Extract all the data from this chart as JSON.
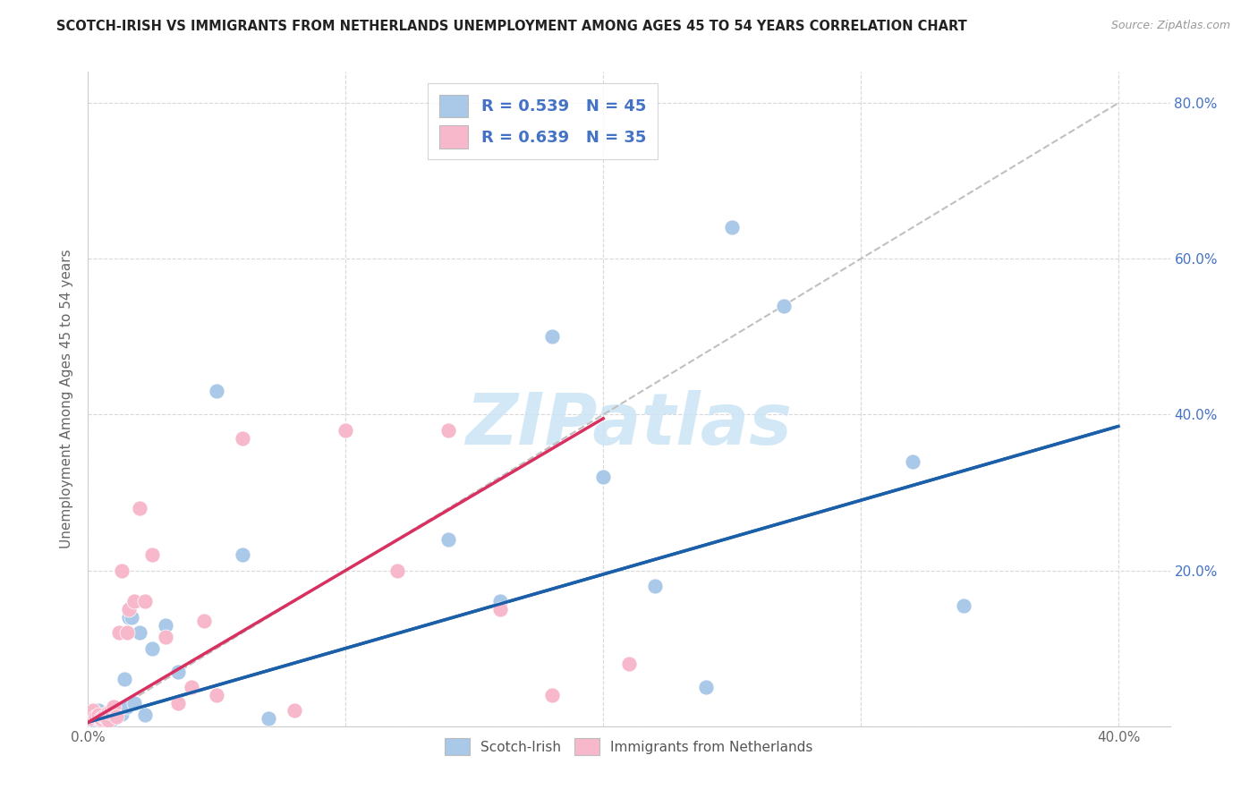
{
  "title": "SCOTCH-IRISH VS IMMIGRANTS FROM NETHERLANDS UNEMPLOYMENT AMONG AGES 45 TO 54 YEARS CORRELATION CHART",
  "source": "Source: ZipAtlas.com",
  "ylabel": "Unemployment Among Ages 45 to 54 years",
  "xlim": [
    0.0,
    0.42
  ],
  "ylim": [
    0.0,
    0.84
  ],
  "blue_R": 0.539,
  "blue_N": 45,
  "pink_R": 0.639,
  "pink_N": 35,
  "blue_color": "#aac8e8",
  "pink_color": "#f8b8cc",
  "blue_line_color": "#1a5fa8",
  "pink_line_color": "#d83060",
  "dashed_line_color": "#c0c0c0",
  "watermark_text": "ZIPatlas",
  "watermark_color": "#cce4f5",
  "grid_color": "#d8d8d8",
  "blue_scatter_x": [
    0.001,
    0.001,
    0.002,
    0.002,
    0.003,
    0.003,
    0.004,
    0.004,
    0.005,
    0.005,
    0.006,
    0.006,
    0.007,
    0.007,
    0.008,
    0.008,
    0.009,
    0.01,
    0.01,
    0.011,
    0.012,
    0.013,
    0.014,
    0.015,
    0.016,
    0.017,
    0.018,
    0.02,
    0.022,
    0.025,
    0.03,
    0.035,
    0.05,
    0.06,
    0.07,
    0.14,
    0.16,
    0.18,
    0.2,
    0.22,
    0.24,
    0.25,
    0.27,
    0.32,
    0.34
  ],
  "blue_scatter_y": [
    0.01,
    0.015,
    0.008,
    0.018,
    0.01,
    0.015,
    0.012,
    0.02,
    0.008,
    0.01,
    0.01,
    0.015,
    0.005,
    0.012,
    0.015,
    0.01,
    0.008,
    0.012,
    0.015,
    0.015,
    0.018,
    0.016,
    0.06,
    0.025,
    0.14,
    0.14,
    0.03,
    0.12,
    0.015,
    0.1,
    0.13,
    0.07,
    0.43,
    0.22,
    0.01,
    0.24,
    0.16,
    0.5,
    0.32,
    0.18,
    0.05,
    0.64,
    0.54,
    0.34,
    0.155
  ],
  "pink_scatter_x": [
    0.001,
    0.002,
    0.002,
    0.003,
    0.004,
    0.005,
    0.005,
    0.006,
    0.007,
    0.008,
    0.008,
    0.009,
    0.01,
    0.011,
    0.012,
    0.013,
    0.015,
    0.016,
    0.018,
    0.02,
    0.022,
    0.025,
    0.03,
    0.035,
    0.04,
    0.045,
    0.05,
    0.06,
    0.08,
    0.1,
    0.12,
    0.14,
    0.16,
    0.18,
    0.21
  ],
  "pink_scatter_y": [
    0.01,
    0.015,
    0.02,
    0.012,
    0.015,
    0.008,
    0.01,
    0.012,
    0.01,
    0.008,
    0.018,
    0.02,
    0.025,
    0.012,
    0.12,
    0.2,
    0.12,
    0.15,
    0.16,
    0.28,
    0.16,
    0.22,
    0.115,
    0.03,
    0.05,
    0.135,
    0.04,
    0.37,
    0.02,
    0.38,
    0.2,
    0.38,
    0.15,
    0.04,
    0.08
  ],
  "blue_line_x0": 0.0,
  "blue_line_y0": 0.005,
  "blue_line_x1": 0.4,
  "blue_line_y1": 0.385,
  "pink_line_x0": 0.0,
  "pink_line_y0": 0.005,
  "pink_line_x1": 0.2,
  "pink_line_y1": 0.395
}
